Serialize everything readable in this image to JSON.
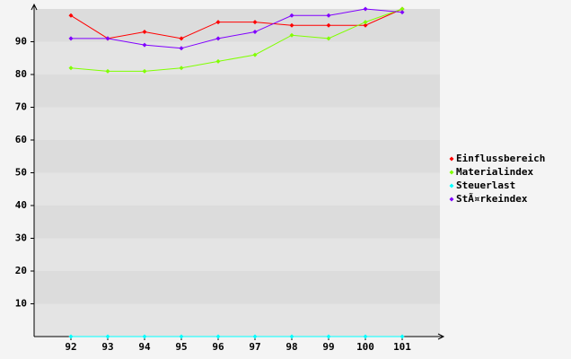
{
  "chart_data": {
    "type": "line",
    "categories": [
      "92",
      "93",
      "94",
      "95",
      "96",
      "97",
      "98",
      "99",
      "100",
      "101"
    ],
    "series": [
      {
        "name": "Einflussbereich",
        "color": "#ff0000",
        "values": [
          98,
          91,
          93,
          91,
          96,
          96,
          95,
          95,
          95,
          100
        ]
      },
      {
        "name": "Materialindex",
        "color": "#80ff00",
        "values": [
          82,
          81,
          81,
          82,
          84,
          86,
          92,
          91,
          96,
          100
        ]
      },
      {
        "name": "Steuerlast",
        "color": "#00ffff",
        "values": [
          0,
          0,
          0,
          0,
          0,
          0,
          0,
          0,
          0,
          0
        ]
      },
      {
        "name": "StÃ¤rkeindex",
        "color": "#8000ff",
        "values": [
          91,
          91,
          89,
          88,
          91,
          93,
          98,
          98,
          100,
          99
        ]
      }
    ],
    "ylim": [
      0,
      100
    ],
    "yticks": [
      10,
      20,
      30,
      40,
      50,
      60,
      70,
      80,
      90
    ],
    "grid": true,
    "legend": "right"
  }
}
